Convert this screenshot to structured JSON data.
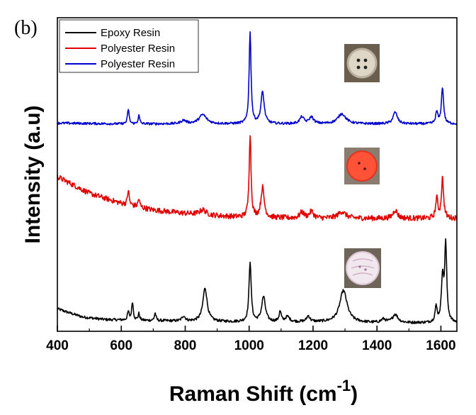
{
  "panel_label": "(b)",
  "chart_data": {
    "type": "line",
    "title": "",
    "xlabel": "Raman Shift (cm",
    "xlabel_superscript": "-1",
    "xlabel_suffix": ")",
    "ylabel": "Intensity (a.u)",
    "xlim": [
      400,
      1650
    ],
    "xticks": [
      400,
      600,
      800,
      1000,
      1200,
      1400,
      1600
    ],
    "y_ticks_shown": false,
    "grid": false,
    "legend_position": "top-left",
    "series": [
      {
        "name": "Epoxy Resin",
        "color": "#000000",
        "offset": 0,
        "baseline": [
          [
            400,
            22
          ],
          [
            430,
            18
          ],
          [
            480,
            12
          ],
          [
            550,
            9
          ],
          [
            650,
            8
          ],
          [
            800,
            7
          ],
          [
            1000,
            6
          ],
          [
            1200,
            6
          ],
          [
            1400,
            5
          ],
          [
            1650,
            5
          ]
        ],
        "peaks": [
          [
            622,
            10,
            3
          ],
          [
            635,
            22,
            3
          ],
          [
            655,
            8,
            3
          ],
          [
            706,
            9,
            3
          ],
          [
            795,
            6,
            6
          ],
          [
            862,
            40,
            8
          ],
          [
            1003,
            72,
            4
          ],
          [
            1045,
            30,
            7
          ],
          [
            1097,
            12,
            4
          ],
          [
            1120,
            6,
            8
          ],
          [
            1185,
            7,
            6
          ],
          [
            1295,
            38,
            14
          ],
          [
            1420,
            4,
            8
          ],
          [
            1457,
            10,
            10
          ],
          [
            1585,
            18,
            4
          ],
          [
            1605,
            52,
            4
          ],
          [
            1615,
            92,
            4
          ]
        ],
        "noise": 1.6
      },
      {
        "name": "Polyester Resin",
        "color": "#e00000",
        "offset": 120,
        "baseline": [
          [
            400,
            60
          ],
          [
            450,
            50
          ],
          [
            500,
            40
          ],
          [
            600,
            28
          ],
          [
            700,
            20
          ],
          [
            800,
            16
          ],
          [
            900,
            13
          ],
          [
            1000,
            11
          ],
          [
            1200,
            10
          ],
          [
            1400,
            10
          ],
          [
            1650,
            10
          ]
        ],
        "peaks": [
          [
            622,
            18,
            3
          ],
          [
            655,
            10,
            3
          ],
          [
            855,
            6,
            12
          ],
          [
            1003,
            100,
            3.5
          ],
          [
            1042,
            36,
            6
          ],
          [
            1165,
            7,
            8
          ],
          [
            1195,
            8,
            8
          ],
          [
            1290,
            8,
            14
          ],
          [
            1457,
            10,
            8
          ],
          [
            1587,
            24,
            4
          ],
          [
            1605,
            48,
            4
          ]
        ],
        "noise": 3.2
      },
      {
        "name": "Polyester Resin",
        "color": "#0000cc",
        "offset": 240,
        "baseline": [
          [
            400,
            4
          ],
          [
            600,
            3
          ],
          [
            800,
            3
          ],
          [
            1000,
            3
          ],
          [
            1200,
            3
          ],
          [
            1400,
            3
          ],
          [
            1650,
            3
          ]
        ],
        "peaks": [
          [
            622,
            18,
            3
          ],
          [
            655,
            10,
            3
          ],
          [
            795,
            4,
            10
          ],
          [
            855,
            11,
            14
          ],
          [
            1003,
            110,
            3.5
          ],
          [
            1042,
            38,
            6
          ],
          [
            1165,
            8,
            8
          ],
          [
            1195,
            8,
            8
          ],
          [
            1290,
            12,
            15
          ],
          [
            1457,
            14,
            8
          ],
          [
            1587,
            14,
            4
          ],
          [
            1605,
            44,
            4
          ]
        ],
        "noise": 1.4
      }
    ],
    "y_range": [
      -5,
      370
    ]
  },
  "insets": [
    {
      "label": "button-white",
      "body": "#ded6c6",
      "rim": "#b9af9c",
      "bg": "#6a5e4e"
    },
    {
      "label": "button-red",
      "body": "#ff5236",
      "rim": "#e03420",
      "bg": "#8a7c6e"
    },
    {
      "label": "button-striped",
      "body": "#f1e8ee",
      "rim": "#d9c4d2",
      "bg": "#6e6458"
    }
  ]
}
